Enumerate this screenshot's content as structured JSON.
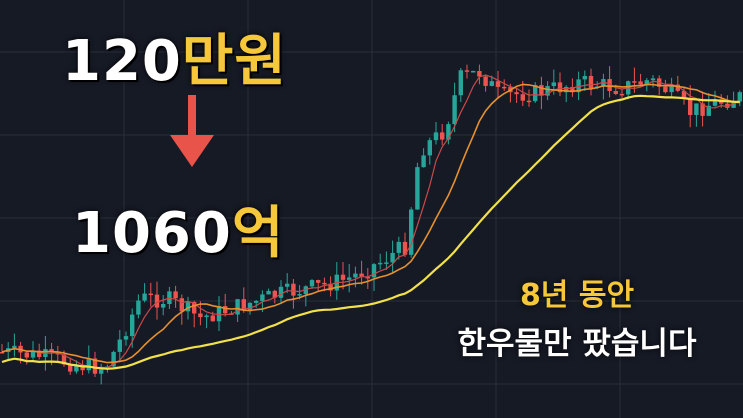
{
  "headline": {
    "from_number": "120",
    "from_unit": "만원",
    "to_number": "1060",
    "to_unit": "억"
  },
  "caption": {
    "line1": "8년 동안",
    "line2": "한우물만 팠습니다"
  },
  "colors": {
    "background": "#161a25",
    "grid": "#2a2e39",
    "candle_up": "#26a69a",
    "candle_down": "#ef5350",
    "ma_fast": "#c94a4a",
    "ma_mid": "#e6902e",
    "ma_slow": "#f2e14a",
    "accent_text": "#f5c73a",
    "arrow": "#e8534a"
  },
  "icons": {
    "arrow": "down-arrow-icon"
  },
  "chart_data": {
    "type": "candlestick",
    "title": "",
    "xlabel": "",
    "ylabel": "",
    "grid": true,
    "legend": "none",
    "trend_points": [
      [
        0,
        352
      ],
      [
        40,
        356
      ],
      [
        80,
        365
      ],
      [
        105,
        368
      ],
      [
        118,
        345
      ],
      [
        140,
        298
      ],
      [
        170,
        300
      ],
      [
        200,
        318
      ],
      [
        240,
        306
      ],
      [
        280,
        294
      ],
      [
        320,
        286
      ],
      [
        350,
        278
      ],
      [
        380,
        262
      ],
      [
        405,
        246
      ],
      [
        420,
        150
      ],
      [
        445,
        130
      ],
      [
        460,
        78
      ],
      [
        480,
        72
      ],
      [
        500,
        96
      ],
      [
        540,
        92
      ],
      [
        580,
        82
      ],
      [
        620,
        88
      ],
      [
        650,
        80
      ],
      [
        670,
        92
      ],
      [
        690,
        112
      ],
      [
        710,
        104
      ],
      [
        743,
        96
      ]
    ]
  }
}
